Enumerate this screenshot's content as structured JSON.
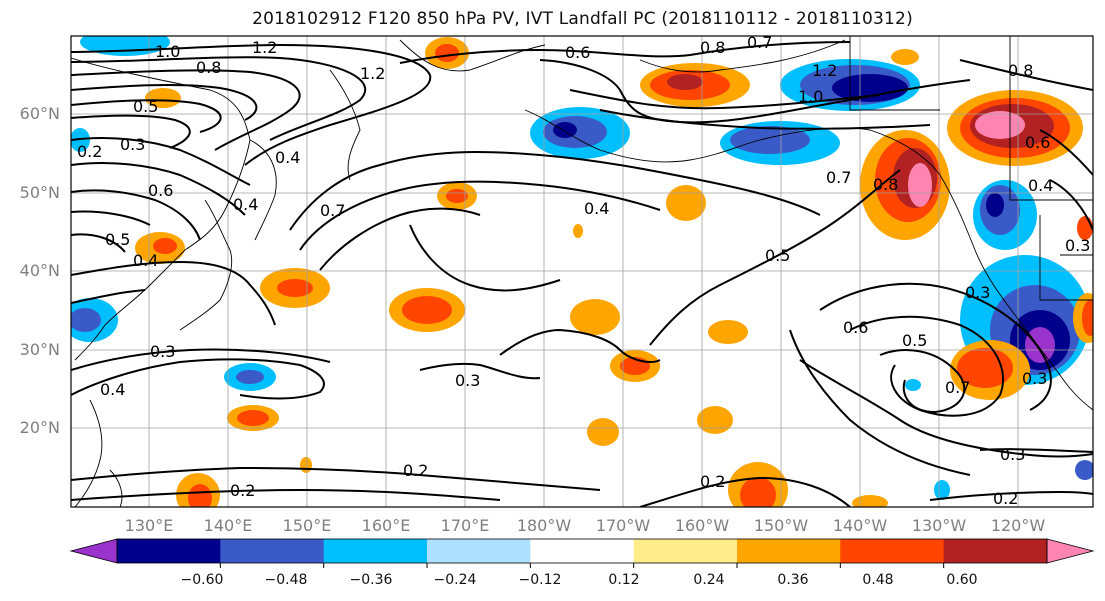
{
  "title": "2018102912 F120 850 hPa PV, IVT Landfall PC (2018110112 - 2018110312)",
  "lat_labels": [
    "60°N",
    "50°N",
    "40°N",
    "30°N",
    "20°N"
  ],
  "lon_labels": [
    "130°E",
    "140°E",
    "150°E",
    "160°E",
    "170°E",
    "180°W",
    "170°W",
    "160°W",
    "150°W",
    "140°W",
    "130°W",
    "120°W"
  ],
  "colorbar": {
    "colors": [
      "#9933cc",
      "#00008b",
      "#3a5bc7",
      "#00bfff",
      "#b0e0ff",
      "#ffffff",
      "#ffec8b",
      "#ffa500",
      "#ff4500",
      "#b22222",
      "#ff85b0"
    ],
    "tick_labels": [
      "−0.60",
      "−0.48",
      "−0.36",
      "−0.24",
      "−0.12",
      "0.12",
      "0.24",
      "0.36",
      "0.48",
      "0.60"
    ]
  },
  "contour_labels": [
    "1.0",
    "1.2",
    "0.8",
    "0.6",
    "0.8",
    "0.7",
    "1.2",
    "1.0",
    "0.8",
    "0.5",
    "1.2",
    "0.3",
    "0.2",
    "0.4",
    "0.5",
    "0.6",
    "0.4",
    "0.7",
    "0.4",
    "0.8",
    "0.7",
    "0.6",
    "0.4",
    "0.3",
    "0.5",
    "0.4",
    "0.3",
    "0.3",
    "0.6",
    "0.5",
    "0.7",
    "0.3",
    "0.3",
    "0.2",
    "0.2",
    "0.2",
    "0.2",
    "0.4",
    "0.3"
  ]
}
